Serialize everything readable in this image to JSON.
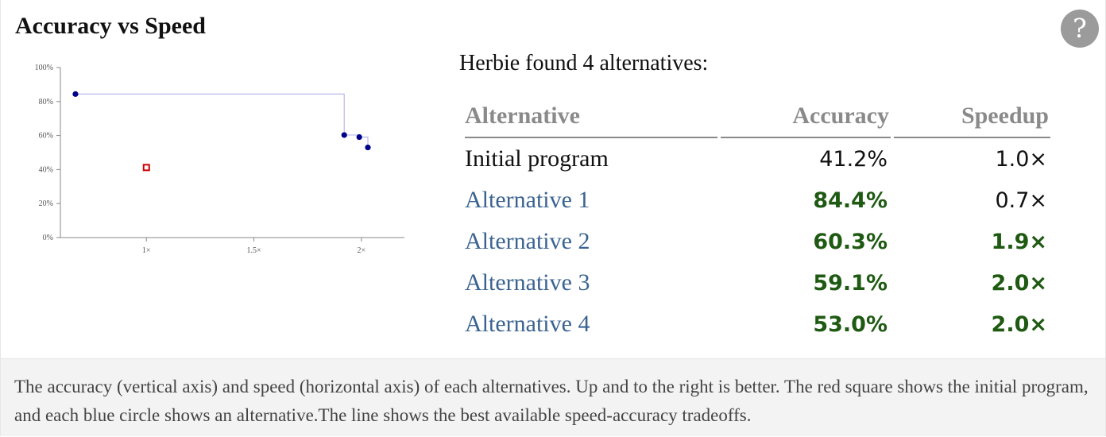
{
  "header": {
    "title": "Accuracy vs Speed",
    "help_label": "?"
  },
  "chart_data": {
    "type": "scatter",
    "title": "",
    "xlabel": "",
    "ylabel": "",
    "y_ticks": [
      "0%",
      "20%",
      "40%",
      "60%",
      "80%",
      "100%"
    ],
    "y_tick_values": [
      0,
      20,
      40,
      60,
      80,
      100
    ],
    "x_ticks": [
      "1×",
      "1.5×",
      "2×"
    ],
    "x_tick_values": [
      1.0,
      1.5,
      2.0
    ],
    "xlim": [
      0.6,
      2.2
    ],
    "ylim": [
      0,
      100
    ],
    "initial": {
      "x": 1.0,
      "y": 41.2,
      "color": "#cc0000",
      "marker": "square"
    },
    "alternatives": {
      "color": "#00008b",
      "points": [
        {
          "x": 0.67,
          "y": 84.4
        },
        {
          "x": 1.92,
          "y": 60.3
        },
        {
          "x": 1.99,
          "y": 59.1
        },
        {
          "x": 2.03,
          "y": 53.0
        }
      ]
    },
    "frontier_color": "#b8b8f0"
  },
  "summary": {
    "found_text": "Herbie found 4 alternatives:"
  },
  "table": {
    "headers": {
      "name": "Alternative",
      "accuracy": "Accuracy",
      "speedup": "Speedup"
    },
    "rows": [
      {
        "name": "Initial program",
        "accuracy": "41.2%",
        "speedup": "1.0×",
        "kind": "initial",
        "acc_better": false,
        "spd_better": false
      },
      {
        "name": "Alternative 1",
        "accuracy": "84.4%",
        "speedup": "0.7×",
        "kind": "alt",
        "acc_better": true,
        "spd_better": false
      },
      {
        "name": "Alternative 2",
        "accuracy": "60.3%",
        "speedup": "1.9×",
        "kind": "alt",
        "acc_better": true,
        "spd_better": true
      },
      {
        "name": "Alternative 3",
        "accuracy": "59.1%",
        "speedup": "2.0×",
        "kind": "alt",
        "acc_better": true,
        "spd_better": true
      },
      {
        "name": "Alternative 4",
        "accuracy": "53.0%",
        "speedup": "2.0×",
        "kind": "alt",
        "acc_better": true,
        "spd_better": true
      }
    ]
  },
  "caption": {
    "text": "The accuracy (vertical axis) and speed (horizontal axis) of each alternatives. Up and to the right is better. The red square shows the initial program, and each blue circle shows an alternative.The line shows the best available speed-accuracy tradeoffs."
  }
}
